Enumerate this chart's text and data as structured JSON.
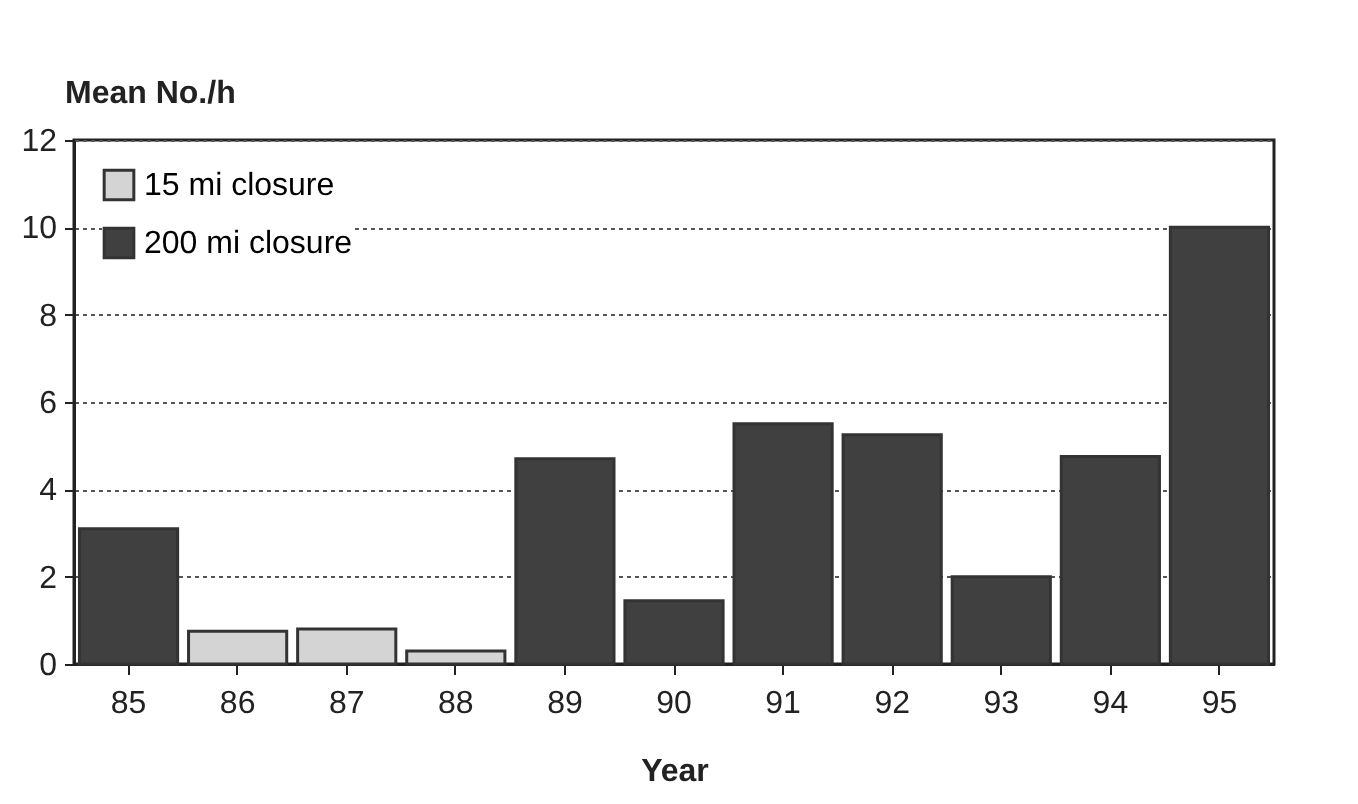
{
  "chart_data": {
    "type": "bar",
    "xlabel": "Year",
    "ylabel": "Mean No./h",
    "categories": [
      "85",
      "86",
      "87",
      "88",
      "89",
      "90",
      "91",
      "92",
      "93",
      "94",
      "95"
    ],
    "series": [
      {
        "name": "15 mi closure",
        "color": "#d4d4d4",
        "values": [
          null,
          0.75,
          0.8,
          0.3,
          null,
          null,
          null,
          null,
          null,
          null,
          null
        ]
      },
      {
        "name": "200 mi closure",
        "color": "#404040",
        "values": [
          3.1,
          null,
          null,
          null,
          4.7,
          1.45,
          5.5,
          5.25,
          2.0,
          4.75,
          10.0
        ]
      }
    ],
    "ylim": [
      0,
      12
    ],
    "yticks": [
      0,
      2,
      4,
      6,
      8,
      10,
      12
    ],
    "grid": "y",
    "legend": "top left"
  }
}
